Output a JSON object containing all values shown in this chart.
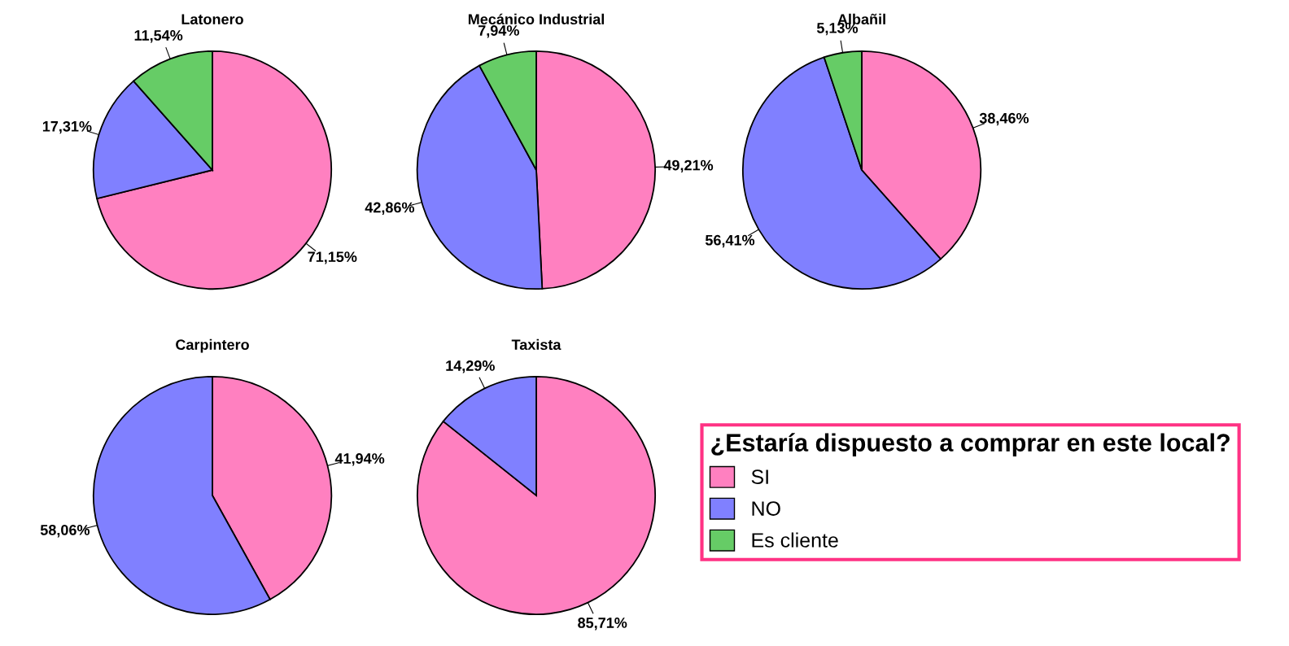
{
  "chart_data": [
    {
      "type": "pie",
      "title": "Latonero",
      "categories": [
        "SI",
        "NO",
        "Es cliente"
      ],
      "values": [
        71.15,
        17.31,
        11.54
      ],
      "value_labels": [
        "71,15%",
        "17,31%",
        "11,54%"
      ],
      "colors": [
        "#ff80c0",
        "#8080ff",
        "#66cc66"
      ],
      "legend": "right",
      "legend_title": "¿Estaría dispuesto a comprar en este local?"
    },
    {
      "type": "pie",
      "title": "Mecánico Industrial",
      "categories": [
        null,
        null,
        null
      ],
      "values": [
        49.21,
        42.86,
        7.94
      ],
      "value_labels": [
        "49,21%",
        "42,86%",
        "7,94%"
      ],
      "colors": [
        "#ff80c0",
        "#8080ff",
        "#66cc66"
      ]
    },
    {
      "type": "pie",
      "title": "Albañil",
      "categories": [
        null,
        null,
        null
      ],
      "values": [
        38.46,
        56.41,
        5.13
      ],
      "value_labels": [
        "38,46%",
        "56,41%",
        "5,13%"
      ],
      "colors": [
        "#ff80c0",
        "#8080ff",
        "#66cc66"
      ]
    },
    {
      "type": "pie",
      "title": "Carpintero",
      "categories": [
        null,
        null
      ],
      "values": [
        41.94,
        58.06
      ],
      "value_labels": [
        "41,94%",
        "58,06%"
      ],
      "colors": [
        "#ff80c0",
        "#8080ff"
      ]
    },
    {
      "type": "pie",
      "title": "Taxista",
      "categories": [
        null,
        null
      ],
      "values": [
        85.71,
        14.29
      ],
      "value_labels": [
        "85,71%",
        "14,29%"
      ],
      "colors": [
        "#ff80c0",
        "#8080ff"
      ]
    }
  ]
}
